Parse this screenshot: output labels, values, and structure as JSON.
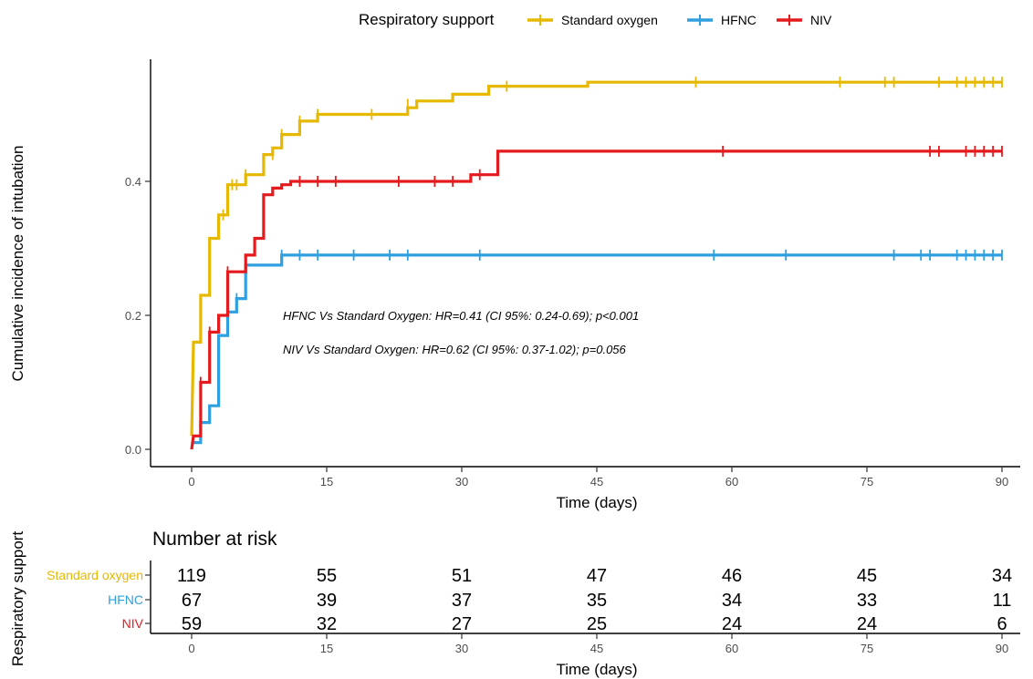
{
  "chart_data": [
    {
      "type": "line",
      "subtype": "step",
      "legend": {
        "title": "Respiratory support",
        "position": "top",
        "entries": [
          {
            "name": "Standard oxygen",
            "color": "#E7B800"
          },
          {
            "name": "HFNC",
            "color": "#2E9FDF"
          },
          {
            "name": "NIV",
            "color": "#E41A1C"
          }
        ]
      },
      "xlabel": "Time (days)",
      "ylabel": "Cumulative incidence of intubation",
      "xlim": [
        -2,
        92
      ],
      "ylim": [
        -0.02,
        0.58
      ],
      "x_ticks": [
        0,
        15,
        30,
        45,
        60,
        75,
        90
      ],
      "y_ticks": [
        0.0,
        0.2,
        0.4
      ],
      "y_tick_labels": [
        "0.0",
        "0.2",
        "0.4"
      ],
      "grid": false,
      "series": [
        {
          "name": "Standard oxygen",
          "color": "#E7B800",
          "steps": [
            [
              0,
              0.02
            ],
            [
              0.2,
              0.16
            ],
            [
              1,
              0.16
            ],
            [
              1,
              0.23
            ],
            [
              2,
              0.23
            ],
            [
              2,
              0.315
            ],
            [
              3,
              0.315
            ],
            [
              3,
              0.35
            ],
            [
              4,
              0.35
            ],
            [
              4,
              0.395
            ],
            [
              6,
              0.395
            ],
            [
              6,
              0.41
            ],
            [
              8,
              0.41
            ],
            [
              8,
              0.44
            ],
            [
              9,
              0.44
            ],
            [
              9,
              0.45
            ],
            [
              10,
              0.45
            ],
            [
              10,
              0.47
            ],
            [
              12,
              0.47
            ],
            [
              12,
              0.49
            ],
            [
              14,
              0.49
            ],
            [
              14,
              0.5
            ],
            [
              24,
              0.5
            ],
            [
              24,
              0.51
            ],
            [
              25,
              0.51
            ],
            [
              25,
              0.52
            ],
            [
              29,
              0.52
            ],
            [
              29,
              0.53
            ],
            [
              33,
              0.53
            ],
            [
              33,
              0.542
            ],
            [
              44,
              0.542
            ],
            [
              44,
              0.548
            ],
            [
              90,
              0.548
            ]
          ],
          "censor": [
            [
              3.5,
              0.35
            ],
            [
              4.5,
              0.395
            ],
            [
              5,
              0.395
            ],
            [
              6,
              0.41
            ],
            [
              9,
              0.44
            ],
            [
              10,
              0.47
            ],
            [
              12,
              0.49
            ],
            [
              14,
              0.5
            ],
            [
              20,
              0.5
            ],
            [
              24,
              0.515
            ],
            [
              35,
              0.542
            ],
            [
              56,
              0.548
            ],
            [
              72,
              0.548
            ],
            [
              77,
              0.548
            ],
            [
              78,
              0.548
            ],
            [
              83,
              0.548
            ],
            [
              85,
              0.548
            ],
            [
              86,
              0.548
            ],
            [
              87,
              0.548
            ],
            [
              88,
              0.548
            ],
            [
              89,
              0.548
            ],
            [
              90,
              0.548
            ]
          ]
        },
        {
          "name": "HFNC",
          "color": "#2E9FDF",
          "steps": [
            [
              0,
              0.01
            ],
            [
              1,
              0.01
            ],
            [
              1,
              0.04
            ],
            [
              2,
              0.04
            ],
            [
              2,
              0.065
            ],
            [
              3,
              0.065
            ],
            [
              3,
              0.17
            ],
            [
              4,
              0.17
            ],
            [
              4,
              0.205
            ],
            [
              5,
              0.205
            ],
            [
              5,
              0.225
            ],
            [
              6,
              0.225
            ],
            [
              6,
              0.275
            ],
            [
              10,
              0.275
            ],
            [
              10,
              0.29
            ],
            [
              90,
              0.29
            ]
          ],
          "censor": [
            [
              4,
              0.205
            ],
            [
              5,
              0.225
            ],
            [
              6,
              0.275
            ],
            [
              10,
              0.29
            ],
            [
              12,
              0.29
            ],
            [
              14,
              0.29
            ],
            [
              18,
              0.29
            ],
            [
              22,
              0.29
            ],
            [
              24,
              0.29
            ],
            [
              32,
              0.29
            ],
            [
              58,
              0.29
            ],
            [
              66,
              0.29
            ],
            [
              78,
              0.29
            ],
            [
              81,
              0.29
            ],
            [
              82,
              0.29
            ],
            [
              85,
              0.29
            ],
            [
              86,
              0.29
            ],
            [
              87,
              0.29
            ],
            [
              88,
              0.29
            ],
            [
              89,
              0.29
            ],
            [
              90,
              0.29
            ]
          ]
        },
        {
          "name": "NIV",
          "color": "#E41A1C",
          "steps": [
            [
              0,
              0.0
            ],
            [
              0.2,
              0.02
            ],
            [
              1,
              0.02
            ],
            [
              1,
              0.1
            ],
            [
              2,
              0.1
            ],
            [
              2,
              0.175
            ],
            [
              3,
              0.175
            ],
            [
              3,
              0.2
            ],
            [
              4,
              0.2
            ],
            [
              4,
              0.265
            ],
            [
              6,
              0.265
            ],
            [
              6,
              0.29
            ],
            [
              7,
              0.29
            ],
            [
              7,
              0.315
            ],
            [
              8,
              0.315
            ],
            [
              8,
              0.38
            ],
            [
              9,
              0.38
            ],
            [
              9,
              0.39
            ],
            [
              10,
              0.39
            ],
            [
              10,
              0.395
            ],
            [
              11,
              0.395
            ],
            [
              11,
              0.4
            ],
            [
              31,
              0.4
            ],
            [
              31,
              0.41
            ],
            [
              34,
              0.41
            ],
            [
              34,
              0.445
            ],
            [
              90,
              0.445
            ]
          ],
          "censor": [
            [
              1,
              0.1
            ],
            [
              2,
              0.175
            ],
            [
              4,
              0.265
            ],
            [
              12,
              0.4
            ],
            [
              14,
              0.4
            ],
            [
              16,
              0.4
            ],
            [
              23,
              0.4
            ],
            [
              27,
              0.4
            ],
            [
              29,
              0.4
            ],
            [
              32,
              0.41
            ],
            [
              59,
              0.445
            ],
            [
              82,
              0.445
            ],
            [
              83,
              0.445
            ],
            [
              86,
              0.445
            ],
            [
              87,
              0.445
            ],
            [
              88,
              0.445
            ],
            [
              89,
              0.445
            ],
            [
              90,
              0.445
            ]
          ]
        }
      ],
      "annotations": [
        "HFNC Vs Standard Oxygen: HR=0.41 (CI 95%: 0.24-0.69); p<0.001",
        "NIV Vs Standard Oxygen: HR=0.62 (CI 95%: 0.37-1.02); p=0.056"
      ]
    },
    {
      "type": "table",
      "title": "Number at risk",
      "ylabel": "Respiratory support",
      "xlabel": "Time (days)",
      "x_ticks": [
        0,
        15,
        30,
        45,
        60,
        75,
        90
      ],
      "rows": [
        {
          "name": "Standard oxygen",
          "color": "#E7B800",
          "values": [
            119,
            55,
            51,
            47,
            46,
            45,
            34
          ]
        },
        {
          "name": "HFNC",
          "color": "#2E9FDF",
          "values": [
            67,
            39,
            37,
            35,
            34,
            33,
            11
          ]
        },
        {
          "name": "NIV",
          "color": "#E41A1C",
          "values": [
            59,
            32,
            27,
            25,
            24,
            24,
            6
          ]
        }
      ]
    }
  ]
}
